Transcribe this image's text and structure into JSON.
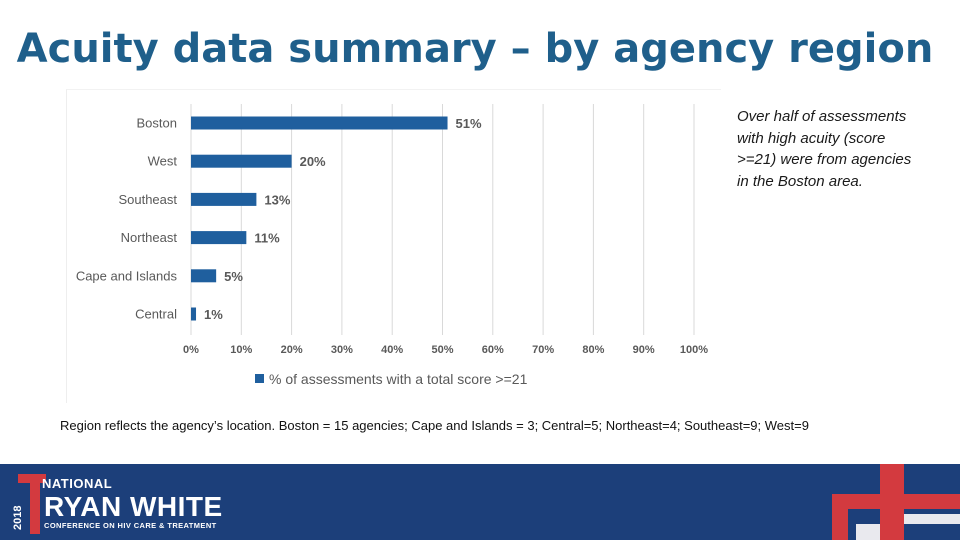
{
  "slide": {
    "title": "Acuity data summary – by agency region",
    "callout": "Over half of assessments with high acuity (score >=21) were from agencies in the Boston area.",
    "footnote": "Region reflects the agency’s location. Boston = 15 agencies; Cape and Islands = 3; Central=5; Northeast=4; Southeast=9; West=9"
  },
  "banner": {
    "year": "2018",
    "national": "NATIONAL",
    "name": "RYAN WHITE",
    "subtitle": "CONFERENCE ON HIV CARE & TREATMENT"
  },
  "colors": {
    "title": "#1f5f8b",
    "bar": "#1f5f9e",
    "banner": "#1c3f7a",
    "accent_red": "#d33a3f"
  },
  "chart_data": {
    "type": "bar",
    "orientation": "horizontal",
    "categories": [
      "Boston",
      "West",
      "Southeast",
      "Northeast",
      "Cape and Islands",
      "Central"
    ],
    "values": [
      51,
      20,
      13,
      11,
      5,
      1
    ],
    "data_labels": [
      "51%",
      "20%",
      "13%",
      "11%",
      "5%",
      "1%"
    ],
    "xlim": [
      0,
      100
    ],
    "x_ticks": [
      0,
      10,
      20,
      30,
      40,
      50,
      60,
      70,
      80,
      90,
      100
    ],
    "x_tick_labels": [
      "0%",
      "10%",
      "20%",
      "30%",
      "40%",
      "50%",
      "60%",
      "70%",
      "80%",
      "90%",
      "100%"
    ],
    "legend": "% of assessments with a total score >=21",
    "legend_position": "bottom",
    "grid": true
  }
}
